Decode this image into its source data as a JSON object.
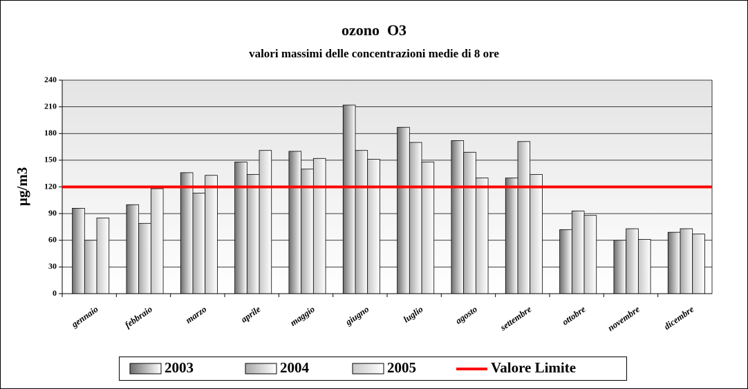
{
  "chart_data": {
    "type": "bar",
    "title": "ozono  O3",
    "subtitle": "valori massimi delle concentrazioni medie di 8 ore",
    "y_label": "µg/m3",
    "categories": [
      "gennaio",
      "febbraio",
      "marzo",
      "aprile",
      "maggio",
      "giugno",
      "luglio",
      "agosto",
      "settembre",
      "ottobre",
      "novembre",
      "dicembre"
    ],
    "series": [
      {
        "name": "2003",
        "color": "#6e6e6e",
        "values": [
          96,
          100,
          136,
          148,
          160,
          212,
          187,
          172,
          130,
          72,
          60,
          69
        ]
      },
      {
        "name": "2004",
        "color": "#a8a8a8",
        "values": [
          60,
          79,
          113,
          134,
          140,
          161,
          170,
          159,
          171,
          93,
          73,
          73
        ]
      },
      {
        "name": "2005",
        "color": "#c8c8c8",
        "values": [
          85,
          118,
          133,
          161,
          152,
          151,
          148,
          130,
          134,
          88,
          61,
          67
        ]
      }
    ],
    "limit": {
      "name": "Valore Limite",
      "value": 120,
      "color": "#ff0000"
    },
    "ylim": [
      0,
      240
    ],
    "yticks": [
      0,
      30,
      60,
      90,
      120,
      150,
      180,
      210,
      240
    ],
    "grid": true
  }
}
